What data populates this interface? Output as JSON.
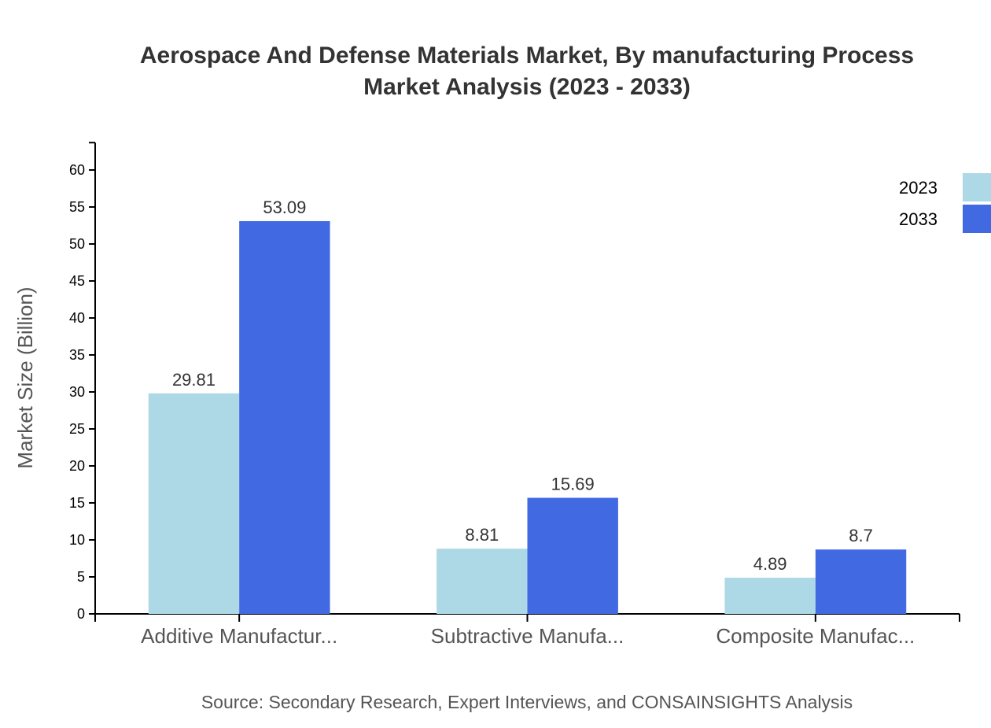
{
  "chart_data": {
    "type": "bar",
    "title_line1": "Aerospace And Defense Materials Market, By manufacturing Process",
    "title_line2": "Market Analysis (2023 - 2033)",
    "ylabel": "Market Size (Billion)",
    "xlabel": "",
    "ylim": [
      0,
      63.7
    ],
    "yticks": [
      0,
      5,
      10,
      15,
      20,
      25,
      30,
      35,
      40,
      45,
      50,
      55,
      60
    ],
    "categories": [
      "Additive Manufactur...",
      "Subtractive Manufa...",
      "Composite Manufac..."
    ],
    "series": [
      {
        "name": "2023",
        "color": "#add8e6",
        "values": [
          29.81,
          8.81,
          4.89
        ]
      },
      {
        "name": "2033",
        "color": "#4169e1",
        "values": [
          53.09,
          15.69,
          8.7
        ]
      }
    ],
    "legend_position": "top-right",
    "grid": false,
    "source": "Source: Secondary Research, Expert Interviews, and CONSAINSIGHTS Analysis"
  }
}
